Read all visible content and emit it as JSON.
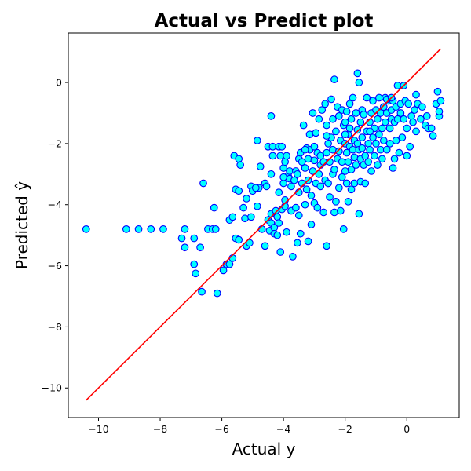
{
  "chart_data": {
    "type": "scatter",
    "title": "Actual vs Predict plot",
    "xlabel": "Actual y",
    "ylabel": "Predicted ŷ",
    "xlim": [
      -10.98,
      1.7
    ],
    "ylim": [
      -10.97,
      1.62
    ],
    "xticks": [
      -10,
      -8,
      -6,
      -4,
      -2,
      0
    ],
    "yticks": [
      -10,
      -8,
      -6,
      -4,
      -2,
      0
    ],
    "xtick_labels": [
      "−10",
      "−8",
      "−6",
      "−4",
      "−2",
      "0"
    ],
    "ytick_labels": [
      "−10",
      "−8",
      "−6",
      "−4",
      "−2",
      "0"
    ],
    "grid": false,
    "legend": "none",
    "marker_fill": "#00ffff",
    "marker_edge": "#0000ff",
    "line_color": "#ff0000",
    "reference_line": {
      "x": [
        -10.4,
        1.1
      ],
      "y": [
        -10.4,
        1.1
      ]
    },
    "points": [
      [
        -10.4,
        -4.8
      ],
      [
        -9.1,
        -4.8
      ],
      [
        -8.7,
        -4.8
      ],
      [
        -8.3,
        -4.8
      ],
      [
        -7.9,
        -4.8
      ],
      [
        -7.3,
        -5.1
      ],
      [
        -7.2,
        -4.8
      ],
      [
        -7.2,
        -5.4
      ],
      [
        -6.9,
        -5.1
      ],
      [
        -6.9,
        -5.95
      ],
      [
        -6.85,
        -6.25
      ],
      [
        -6.7,
        -5.4
      ],
      [
        -6.65,
        -6.85
      ],
      [
        -6.6,
        -3.3
      ],
      [
        -6.45,
        -4.8
      ],
      [
        -6.3,
        -4.8
      ],
      [
        -6.25,
        -4.1
      ],
      [
        -6.2,
        -4.8
      ],
      [
        -6.15,
        -6.9
      ],
      [
        -5.95,
        -6.15
      ],
      [
        -5.85,
        -5.95
      ],
      [
        -5.75,
        -5.95
      ],
      [
        -5.75,
        -4.5
      ],
      [
        -5.65,
        -5.75
      ],
      [
        -5.65,
        -4.4
      ],
      [
        -5.6,
        -2.4
      ],
      [
        -5.55,
        -3.5
      ],
      [
        -5.55,
        -5.1
      ],
      [
        -5.45,
        -5.15
      ],
      [
        -5.45,
        -2.5
      ],
      [
        -5.45,
        -3.55
      ],
      [
        -5.4,
        -2.7
      ],
      [
        -5.3,
        -4.1
      ],
      [
        -5.25,
        -4.45
      ],
      [
        -5.2,
        -3.8
      ],
      [
        -5.2,
        -5.35
      ],
      [
        -5.1,
        -5.25
      ],
      [
        -5.05,
        -4.4
      ],
      [
        -5.05,
        -3.4
      ],
      [
        -5.0,
        -3.55
      ],
      [
        -4.85,
        -1.9
      ],
      [
        -4.85,
        -4.05
      ],
      [
        -4.8,
        -3.45
      ],
      [
        -4.75,
        -2.75
      ],
      [
        -4.7,
        -4.8
      ],
      [
        -4.6,
        -5.35
      ],
      [
        -4.6,
        -3.3
      ],
      [
        -4.55,
        -3.4
      ],
      [
        -4.5,
        -4.5
      ],
      [
        -4.5,
        -2.1
      ],
      [
        -4.45,
        -4.85
      ],
      [
        -4.4,
        -4.6
      ],
      [
        -4.4,
        -4.3
      ],
      [
        -4.4,
        -1.1
      ],
      [
        -4.35,
        -2.1
      ],
      [
        -4.35,
        -2.4
      ],
      [
        -4.3,
        -4.75
      ],
      [
        -4.3,
        -4.95
      ],
      [
        -4.25,
        -4.2
      ],
      [
        -4.2,
        -4.4
      ],
      [
        -4.2,
        -5.0
      ],
      [
        -4.15,
        -2.1
      ],
      [
        -4.15,
        -3.6
      ],
      [
        -4.15,
        -4.6
      ],
      [
        -4.1,
        -2.4
      ],
      [
        -4.1,
        -5.55
      ],
      [
        -4.05,
        -4.15
      ],
      [
        -4.05,
        -2.1
      ],
      [
        -4.0,
        -2.8
      ],
      [
        -4.0,
        -3.3
      ],
      [
        -3.95,
        -4.05
      ],
      [
        -3.95,
        -3.85
      ],
      [
        -3.95,
        -2.6
      ],
      [
        -3.9,
        -4.9
      ],
      [
        -3.9,
        -2.4
      ],
      [
        -3.85,
        -3.05
      ],
      [
        -3.8,
        -3.15
      ],
      [
        -3.8,
        -2.9
      ],
      [
        -3.75,
        -3.4
      ],
      [
        -3.75,
        -4.2
      ],
      [
        -3.7,
        -5.7
      ],
      [
        -3.65,
        -3.2
      ],
      [
        -3.6,
        -4.1
      ],
      [
        -3.6,
        -2.9
      ],
      [
        -3.55,
        -5.25
      ],
      [
        -3.55,
        -3.0
      ],
      [
        -3.5,
        -2.5
      ],
      [
        -3.5,
        -3.6
      ],
      [
        -3.5,
        -4.35
      ],
      [
        -3.45,
        -4.95
      ],
      [
        -3.45,
        -2.3
      ],
      [
        -3.4,
        -3.3
      ],
      [
        -3.4,
        -2.6
      ],
      [
        -3.35,
        -1.4
      ],
      [
        -3.3,
        -4.0
      ],
      [
        -3.3,
        -2.8
      ],
      [
        -3.25,
        -2.15
      ],
      [
        -3.25,
        -3.5
      ],
      [
        -3.2,
        -5.2
      ],
      [
        -3.2,
        -2.5
      ],
      [
        -3.2,
        -3.2
      ],
      [
        -3.15,
        -2.2
      ],
      [
        -3.15,
        -1.7
      ],
      [
        -3.1,
        -4.65
      ],
      [
        -3.1,
        -3.7
      ],
      [
        -3.05,
        -2.9
      ],
      [
        -3.05,
        -1.0
      ],
      [
        -3.0,
        -2.55
      ],
      [
        -3.0,
        -3.95
      ],
      [
        -3.0,
        -2.1
      ],
      [
        -2.95,
        -3.3
      ],
      [
        -2.95,
        -1.65
      ],
      [
        -2.9,
        -2.3
      ],
      [
        -2.9,
        -4.1
      ],
      [
        -2.85,
        -3.0
      ],
      [
        -2.85,
        -1.2
      ],
      [
        -2.8,
        -2.4
      ],
      [
        -2.8,
        -2.7
      ],
      [
        -2.8,
        -3.4
      ],
      [
        -2.75,
        -0.9
      ],
      [
        -2.7,
        -2.6
      ],
      [
        -2.7,
        -4.25
      ],
      [
        -2.65,
        -0.7
      ],
      [
        -2.65,
        -3.2
      ],
      [
        -2.6,
        -2.3
      ],
      [
        -2.6,
        -1.4
      ],
      [
        -2.6,
        -5.35
      ],
      [
        -2.55,
        -2.0
      ],
      [
        -2.55,
        -3.3
      ],
      [
        -2.5,
        -3.75
      ],
      [
        -2.5,
        -2.6
      ],
      [
        -2.45,
        -1.8
      ],
      [
        -2.45,
        -0.55
      ],
      [
        -2.4,
        -3.0
      ],
      [
        -2.4,
        -2.2
      ],
      [
        -2.4,
        -1.2
      ],
      [
        -2.35,
        -4.25
      ],
      [
        -2.35,
        -2.85
      ],
      [
        -2.35,
        0.1
      ],
      [
        -2.3,
        -1.6
      ],
      [
        -2.3,
        -3.9
      ],
      [
        -2.25,
        -2.5
      ],
      [
        -2.25,
        -0.8
      ],
      [
        -2.2,
        -2.25
      ],
      [
        -2.2,
        -1.1
      ],
      [
        -2.2,
        -3.45
      ],
      [
        -2.15,
        -4.2
      ],
      [
        -2.15,
        -1.9
      ],
      [
        -2.1,
        -2.6
      ],
      [
        -2.1,
        -3.1
      ],
      [
        -2.1,
        -0.9
      ],
      [
        -2.05,
        -4.8
      ],
      [
        -2.05,
        -1.4
      ],
      [
        -2.0,
        -2.0
      ],
      [
        -2.0,
        -2.9
      ],
      [
        -2.0,
        -1.3
      ],
      [
        -1.95,
        -3.3
      ],
      [
        -1.95,
        -2.3
      ],
      [
        -1.95,
        -0.95
      ],
      [
        -1.9,
        -1.7
      ],
      [
        -1.9,
        -2.6
      ],
      [
        -1.9,
        -3.9
      ],
      [
        -1.85,
        -1.5
      ],
      [
        -1.85,
        -2.1
      ],
      [
        -1.85,
        -0.7
      ],
      [
        -1.8,
        -2.85
      ],
      [
        -1.8,
        -3.5
      ],
      [
        -1.8,
        -1.2
      ],
      [
        -1.75,
        -2.2
      ],
      [
        -1.75,
        -0.5
      ],
      [
        -1.7,
        -1.9
      ],
      [
        -1.7,
        -2.45
      ],
      [
        -1.7,
        -3.3
      ],
      [
        -1.65,
        -1.0
      ],
      [
        -1.65,
        -2.7
      ],
      [
        -1.6,
        -1.55
      ],
      [
        -1.6,
        -2.0
      ],
      [
        -1.6,
        0.3
      ],
      [
        -1.55,
        -2.2
      ],
      [
        -1.55,
        -4.3
      ],
      [
        -1.55,
        0.0
      ],
      [
        -1.5,
        -1.3
      ],
      [
        -1.5,
        -2.5
      ],
      [
        -1.5,
        -3.25
      ],
      [
        -1.45,
        -0.9
      ],
      [
        -1.45,
        -1.8
      ],
      [
        -1.45,
        -2.15
      ],
      [
        -1.4,
        -2.7
      ],
      [
        -1.4,
        -1.05
      ],
      [
        -1.35,
        -2.4
      ],
      [
        -1.35,
        -3.3
      ],
      [
        -1.3,
        -1.6
      ],
      [
        -1.3,
        -0.5
      ],
      [
        -1.25,
        -2.0
      ],
      [
        -1.25,
        -2.6
      ],
      [
        -1.2,
        -1.3
      ],
      [
        -1.2,
        -2.2
      ],
      [
        -1.15,
        -1.0
      ],
      [
        -1.15,
        -2.9
      ],
      [
        -1.1,
        -1.8
      ],
      [
        -1.1,
        -0.6
      ],
      [
        -1.05,
        -2.4
      ],
      [
        -1.05,
        -1.5
      ],
      [
        -1.0,
        -2.0
      ],
      [
        -1.0,
        -0.9
      ],
      [
        -0.95,
        -1.2
      ],
      [
        -0.95,
        -2.7
      ],
      [
        -0.9,
        -1.7
      ],
      [
        -0.9,
        -0.5
      ],
      [
        -0.85,
        -2.2
      ],
      [
        -0.85,
        -1.0
      ],
      [
        -0.8,
        -1.5
      ],
      [
        -0.8,
        -2.5
      ],
      [
        -0.75,
        -0.8
      ],
      [
        -0.75,
        -1.9
      ],
      [
        -0.7,
        -0.5
      ],
      [
        -0.7,
        -1.3
      ],
      [
        -0.65,
        -2.2
      ],
      [
        -0.65,
        -1.0
      ],
      [
        -0.6,
        -0.6
      ],
      [
        -0.55,
        -1.5
      ],
      [
        -0.55,
        -2.0
      ],
      [
        -0.5,
        -0.9
      ],
      [
        -0.5,
        -1.2
      ],
      [
        -0.45,
        -2.8
      ],
      [
        -0.45,
        -0.6
      ],
      [
        -0.4,
        -1.3
      ],
      [
        -0.4,
        -2.5
      ],
      [
        -0.35,
        -0.8
      ],
      [
        -0.35,
        -1.9
      ],
      [
        -0.3,
        -0.1
      ],
      [
        -0.3,
        -1.2
      ],
      [
        -0.25,
        -2.3
      ],
      [
        -0.2,
        -0.7
      ],
      [
        -0.2,
        -1.0
      ],
      [
        -0.15,
        -1.8
      ],
      [
        -0.1,
        -0.1
      ],
      [
        -0.1,
        -1.2
      ],
      [
        -0.05,
        -0.6
      ],
      [
        0.0,
        -2.4
      ],
      [
        0.0,
        -1.5
      ],
      [
        0.05,
        -0.7
      ],
      [
        0.1,
        -2.1
      ],
      [
        0.15,
        -1.1
      ],
      [
        0.2,
        -1.3
      ],
      [
        0.25,
        -0.9
      ],
      [
        0.3,
        -0.4
      ],
      [
        0.3,
        -1.6
      ],
      [
        0.35,
        -0.7
      ],
      [
        0.45,
        -1.2
      ],
      [
        0.5,
        -0.8
      ],
      [
        0.6,
        -1.4
      ],
      [
        0.65,
        -1.1
      ],
      [
        0.7,
        -1.5
      ],
      [
        0.8,
        -1.5
      ],
      [
        0.85,
        -1.75
      ],
      [
        0.95,
        -0.7
      ],
      [
        1.0,
        -0.3
      ],
      [
        1.05,
        -1.1
      ],
      [
        1.1,
        -0.6
      ],
      [
        1.05,
        -0.95
      ],
      [
        -0.65,
        -0.55
      ],
      [
        -0.5,
        -0.5
      ],
      [
        -1.2,
        -1.6
      ],
      [
        -2.0,
        -1.7
      ],
      [
        -2.6,
        -1.75
      ],
      [
        -3.3,
        -2.2
      ],
      [
        -4.0,
        -3.1
      ],
      [
        -4.4,
        -3.0
      ],
      [
        -4.9,
        -3.45
      ]
    ]
  }
}
